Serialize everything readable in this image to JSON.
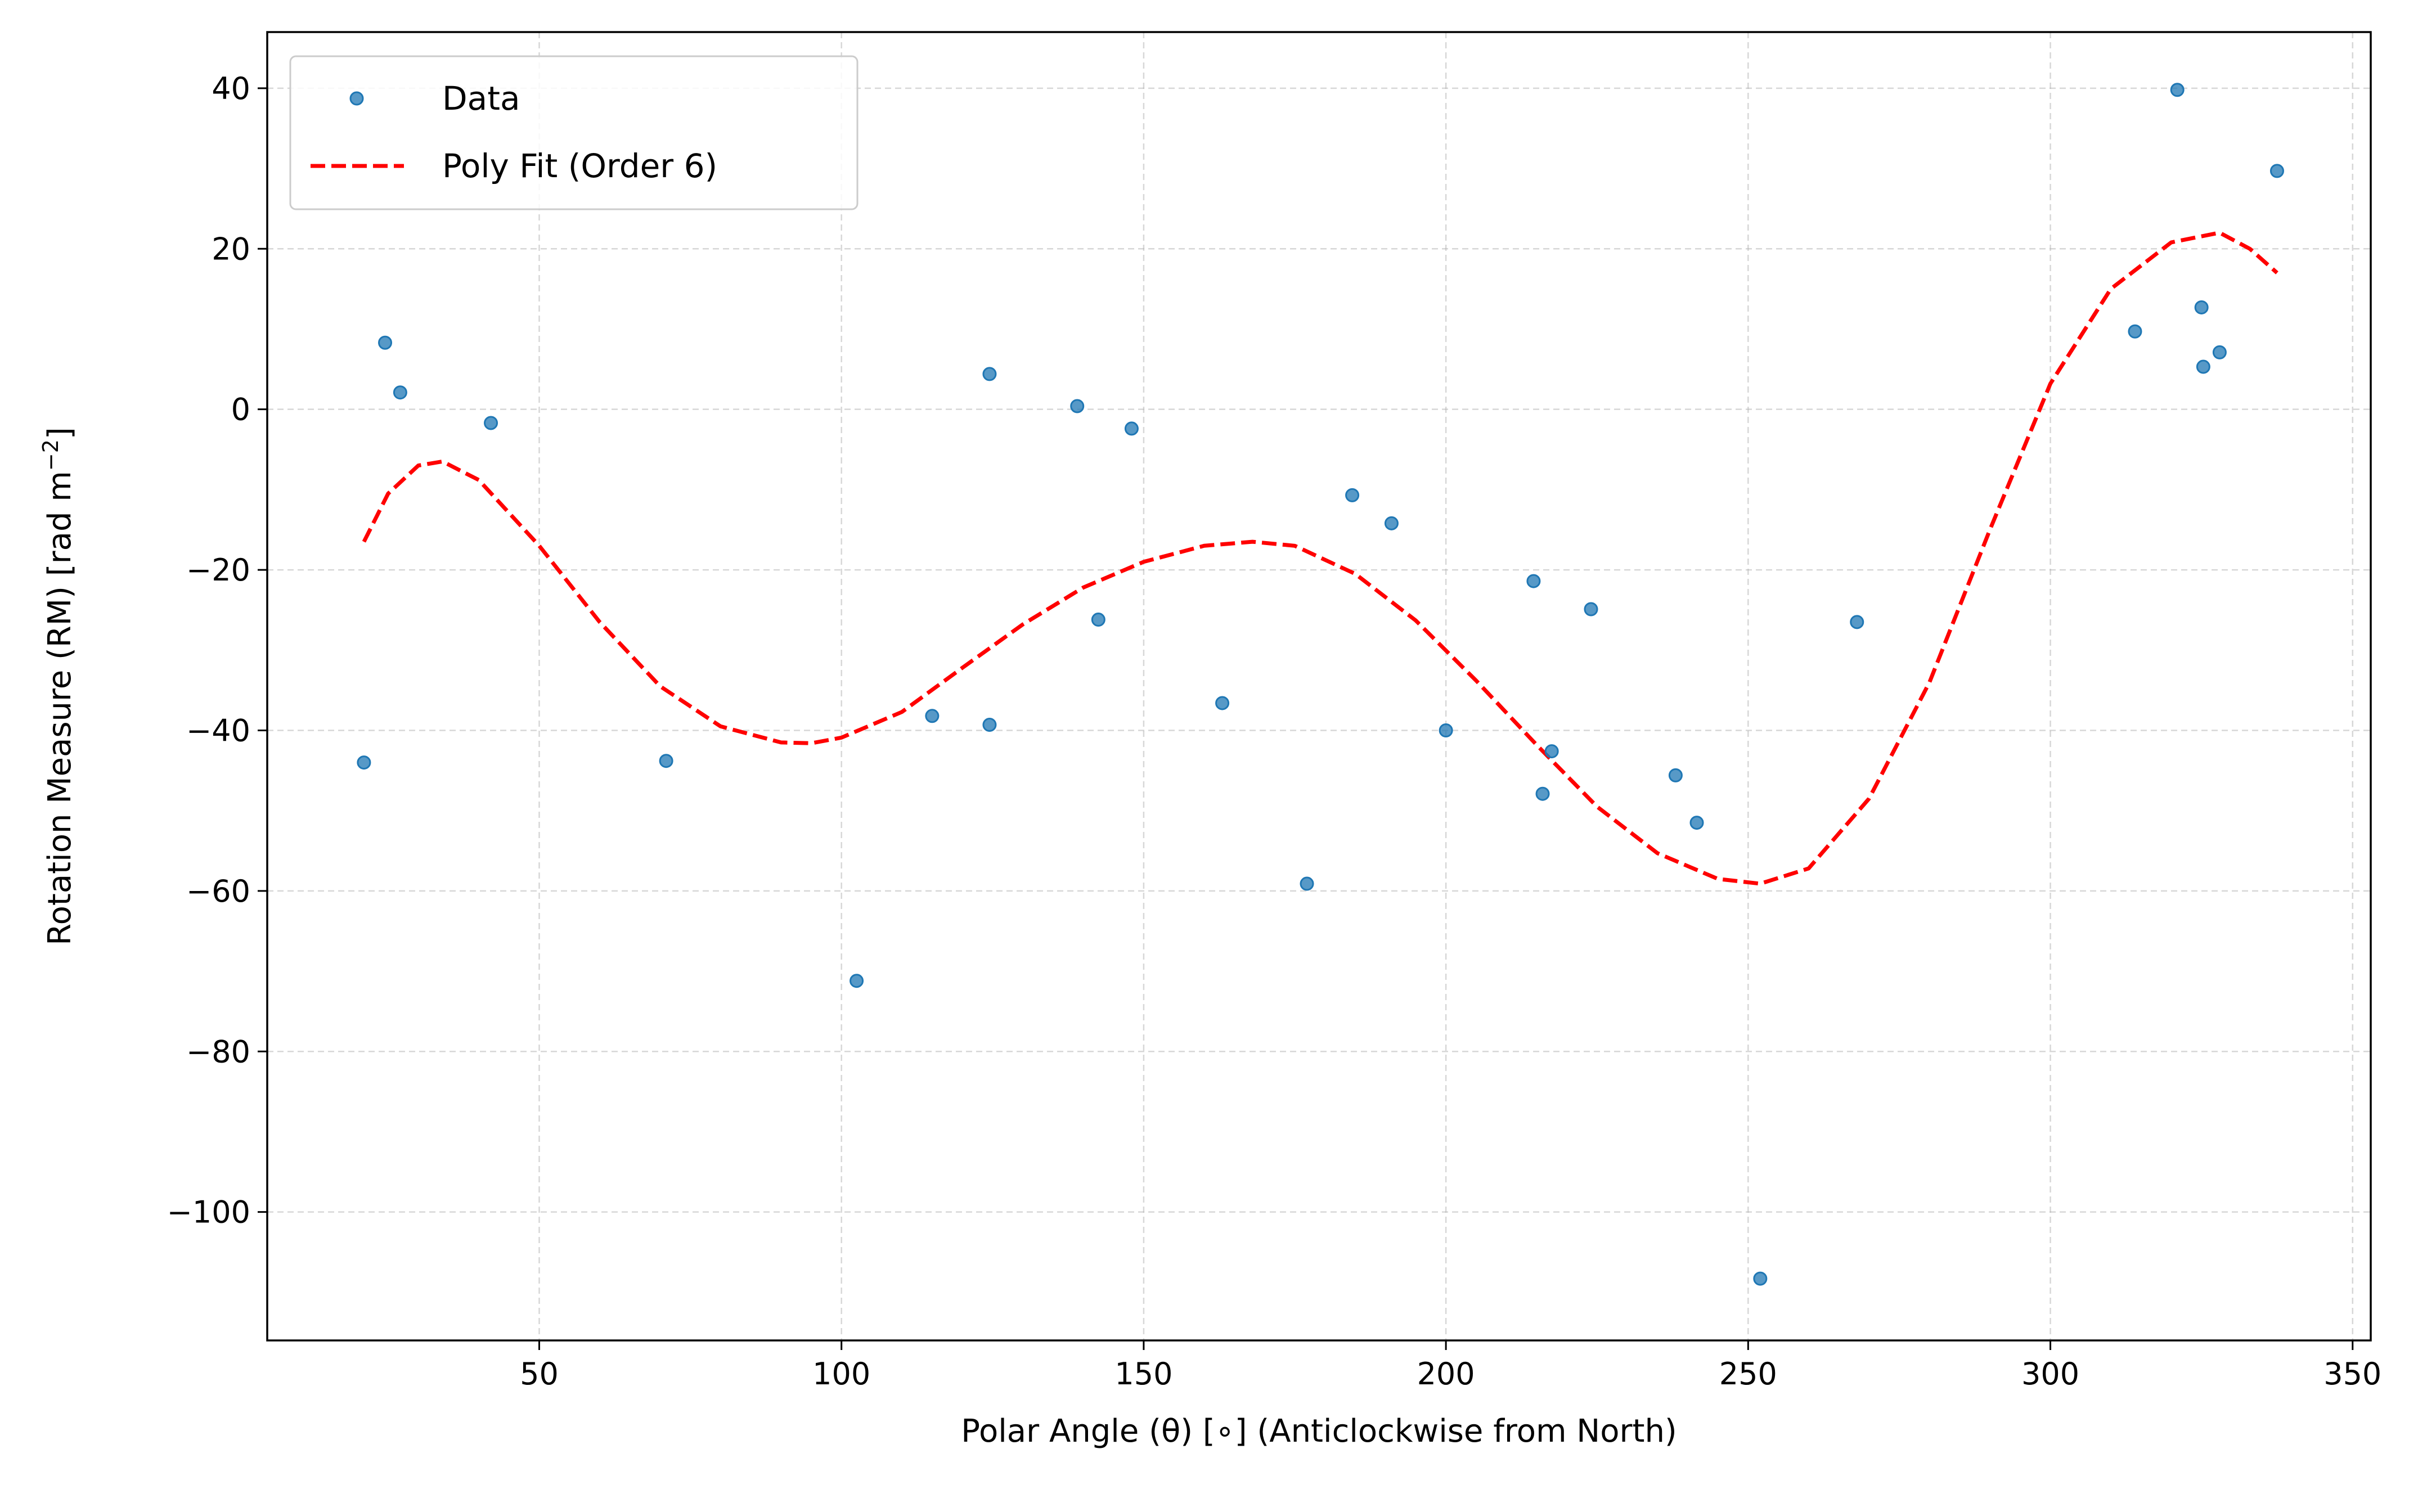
{
  "chart_data": {
    "type": "scatter",
    "xlabel": "Polar Angle (θ) [∘] (Anticlockwise from North)",
    "ylabel_main": "Rotation Measure (RM) [rad m",
    "ylabel_sup": "−2",
    "ylabel_end": "]",
    "xlim": [
      5,
      353
    ],
    "ylim": [
      -116,
      47
    ],
    "xticks": [
      50,
      100,
      150,
      200,
      250,
      300,
      350
    ],
    "yticks": [
      -100,
      -80,
      -60,
      -40,
      -20,
      0,
      20,
      40
    ],
    "xtick_labels": [
      "50",
      "100",
      "150",
      "200",
      "250",
      "300",
      "350"
    ],
    "ytick_labels": [
      "−100",
      "−80",
      "−60",
      "−40",
      "−20",
      "0",
      "20",
      "40"
    ],
    "grid": true,
    "legend_position": "top-left",
    "series": [
      {
        "name": "Data",
        "kind": "scatter",
        "color": "#1f77b4",
        "points": [
          [
            21,
            -44
          ],
          [
            24.5,
            8.3
          ],
          [
            27,
            2.1
          ],
          [
            42,
            -1.7
          ],
          [
            71,
            -43.8
          ],
          [
            102.5,
            -71.2
          ],
          [
            115,
            -38.2
          ],
          [
            124.5,
            4.4
          ],
          [
            124.5,
            -39.3
          ],
          [
            139,
            0.4
          ],
          [
            142.5,
            -26.2
          ],
          [
            148,
            -2.4
          ],
          [
            163,
            -36.6
          ],
          [
            177,
            -59.1
          ],
          [
            184.5,
            -10.7
          ],
          [
            191,
            -14.2
          ],
          [
            200,
            -40
          ],
          [
            214.5,
            -21.4
          ],
          [
            216,
            -47.9
          ],
          [
            217.5,
            -42.6
          ],
          [
            224,
            -24.9
          ],
          [
            238,
            -45.6
          ],
          [
            241.5,
            -51.5
          ],
          [
            252,
            -108.3
          ],
          [
            268,
            -26.5
          ],
          [
            314,
            9.7
          ],
          [
            321,
            39.8
          ],
          [
            325,
            12.7
          ],
          [
            325.3,
            5.3
          ],
          [
            328,
            7.1
          ],
          [
            337.5,
            29.7
          ]
        ]
      },
      {
        "name": "Poly Fit (Order 6)",
        "kind": "line",
        "color": "#ff0000",
        "dashed": true,
        "x_range": [
          21,
          337.5
        ],
        "points": [
          [
            21,
            -16.5
          ],
          [
            25,
            -10.5
          ],
          [
            30,
            -7
          ],
          [
            34,
            -6.5
          ],
          [
            40,
            -8.8
          ],
          [
            50,
            -17
          ],
          [
            60,
            -26.5
          ],
          [
            70,
            -34.5
          ],
          [
            80,
            -39.5
          ],
          [
            90,
            -41.5
          ],
          [
            95,
            -41.6
          ],
          [
            100,
            -40.9
          ],
          [
            110,
            -37.7
          ],
          [
            120,
            -32.2
          ],
          [
            130,
            -26.8
          ],
          [
            140,
            -22.2
          ],
          [
            150,
            -19
          ],
          [
            160,
            -17
          ],
          [
            168,
            -16.5
          ],
          [
            175,
            -17
          ],
          [
            185,
            -20.5
          ],
          [
            195,
            -26.3
          ],
          [
            205,
            -33.8
          ],
          [
            215,
            -41.8
          ],
          [
            225,
            -49.5
          ],
          [
            235,
            -55.3
          ],
          [
            245,
            -58.5
          ],
          [
            252,
            -59.1
          ],
          [
            260,
            -57.2
          ],
          [
            270,
            -48.5
          ],
          [
            280,
            -34
          ],
          [
            290,
            -15
          ],
          [
            300,
            3.2
          ],
          [
            310,
            15
          ],
          [
            320,
            20.8
          ],
          [
            328,
            22
          ],
          [
            333,
            20
          ],
          [
            337.5,
            17
          ]
        ]
      }
    ]
  }
}
